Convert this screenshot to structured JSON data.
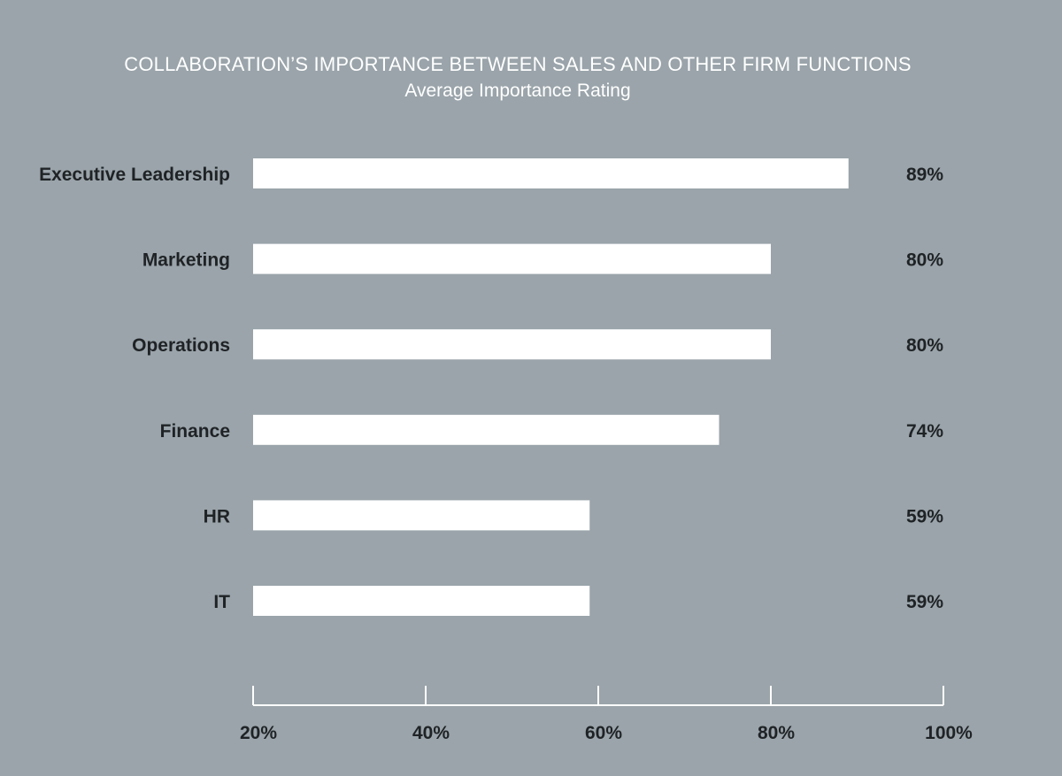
{
  "chart_data": {
    "type": "bar",
    "orientation": "horizontal",
    "title": "COLLABORATION’S IMPORTANCE BETWEEN SALES AND OTHER FIRM FUNCTIONS",
    "subtitle": "Average  Importance Rating",
    "categories": [
      "Executive Leadership",
      "Marketing",
      "Operations",
      "Finance",
      "HR",
      "IT"
    ],
    "values": [
      89,
      80,
      80,
      74,
      59,
      59
    ],
    "value_labels": [
      "89%",
      "80%",
      "80%",
      "74%",
      "59%",
      "59%"
    ],
    "xlim": [
      20,
      100
    ],
    "xticks": [
      20,
      40,
      60,
      80,
      100
    ],
    "xtick_labels": [
      "20%",
      "40%",
      "60%",
      "80%",
      "100%"
    ],
    "bar_color": "#ffffff",
    "background_color": "#9aa4aa",
    "axis_color": "#ffffff",
    "grid": false
  }
}
